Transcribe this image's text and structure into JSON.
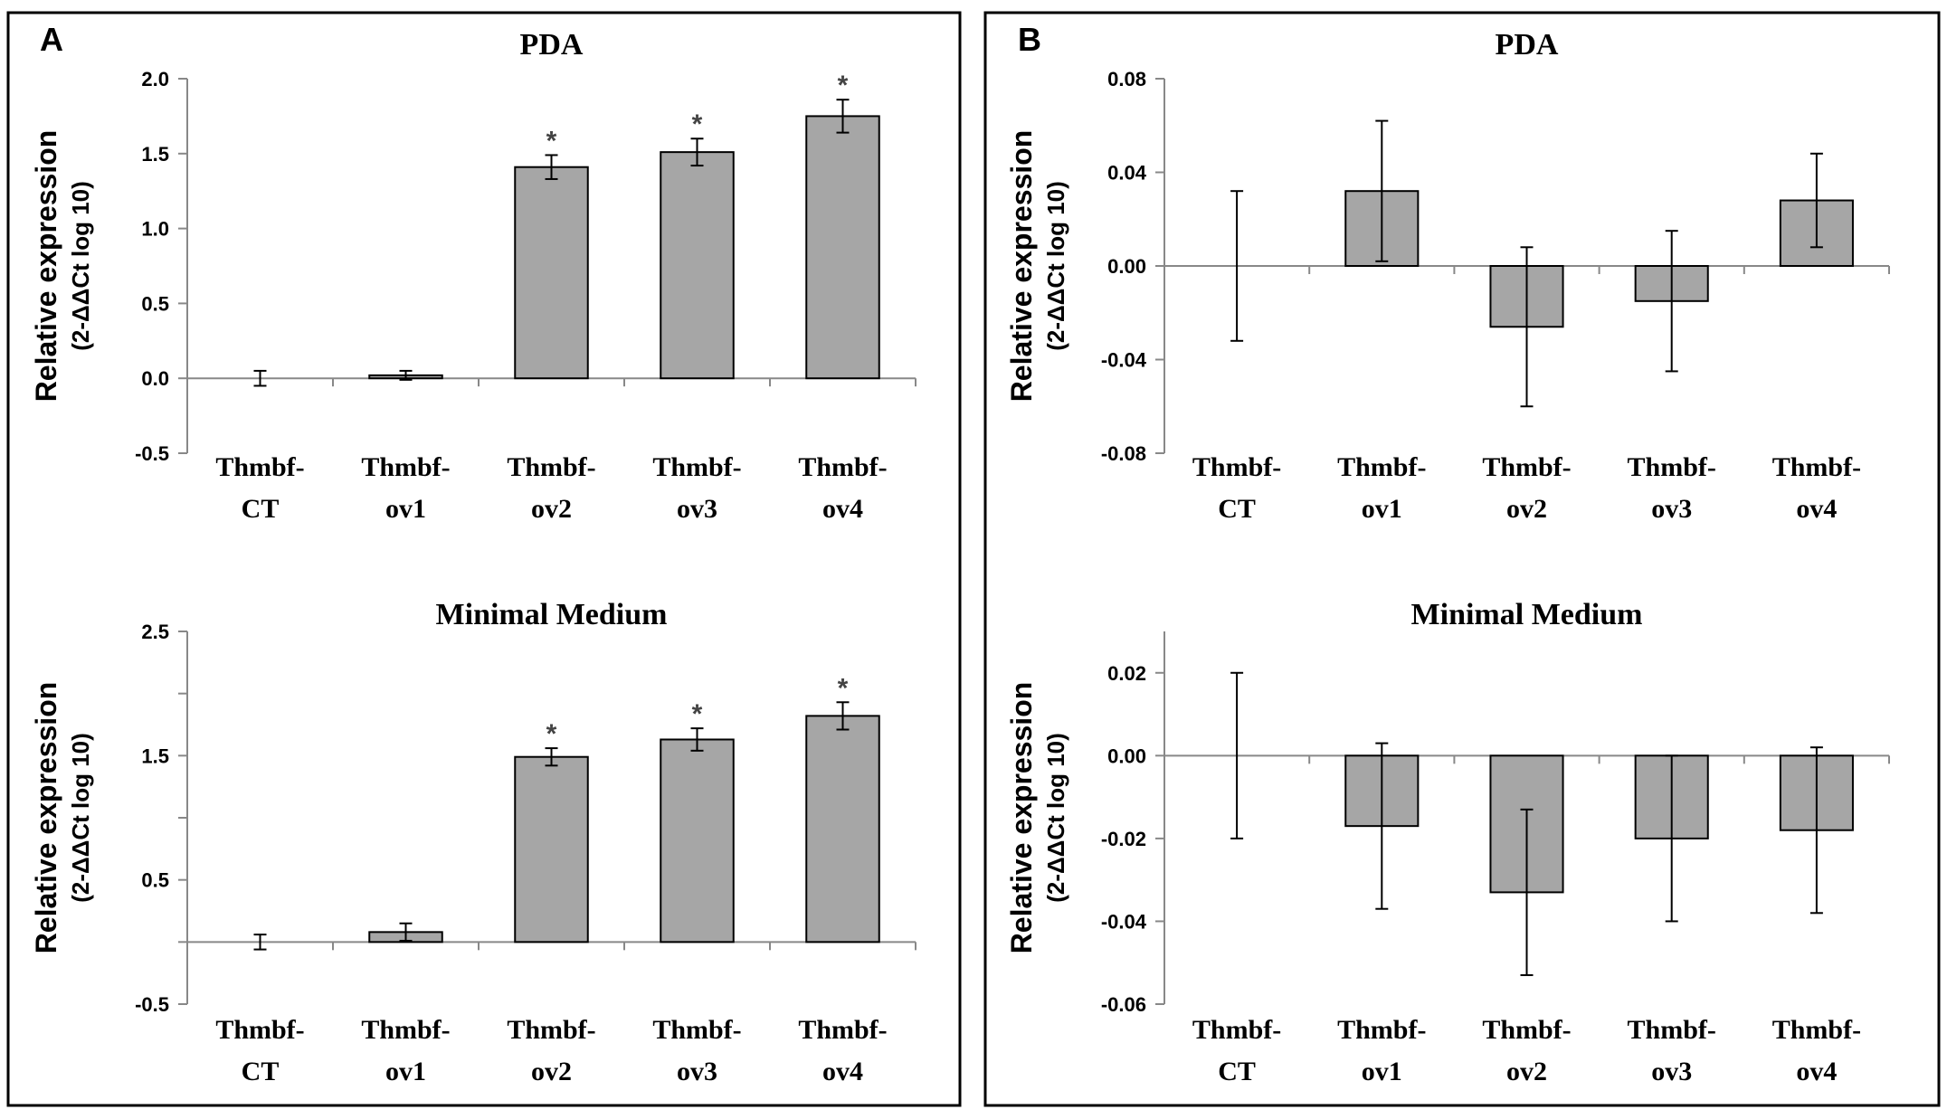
{
  "figure": {
    "panels": [
      {
        "letter": "A"
      },
      {
        "letter": "B"
      }
    ]
  },
  "chart_data": [
    {
      "panel": "A",
      "type": "bar",
      "title": "PDA",
      "ylabel_main": "Relative expression",
      "ylabel_sub": "(2-ΔΔCt log 10)",
      "categories": [
        [
          "Thmbf-",
          "CT"
        ],
        [
          "Thmbf-",
          "ov1"
        ],
        [
          "Thmbf-",
          "ov2"
        ],
        [
          "Thmbf-",
          "ov3"
        ],
        [
          "Thmbf-",
          "ov4"
        ]
      ],
      "values": [
        0.0,
        0.02,
        1.41,
        1.51,
        1.75
      ],
      "errors": [
        0.05,
        0.03,
        0.08,
        0.09,
        0.11
      ],
      "significant": [
        false,
        false,
        true,
        true,
        true
      ],
      "marker": "*",
      "ylim": [
        -0.5,
        2.0
      ],
      "yticks": [
        -0.5,
        0.0,
        0.5,
        1.0,
        1.5,
        2.0
      ],
      "ytick_labels": [
        "-0.5",
        "0.0",
        "0.5",
        "1.0",
        "1.5",
        "2.0"
      ]
    },
    {
      "panel": "A",
      "type": "bar",
      "title": "Minimal Medium",
      "ylabel_main": "Relative expression",
      "ylabel_sub": "(2-ΔΔCt log 10)",
      "categories": [
        [
          "Thmbf-",
          "CT"
        ],
        [
          "Thmbf-",
          "ov1"
        ],
        [
          "Thmbf-",
          "ov2"
        ],
        [
          "Thmbf-",
          "ov3"
        ],
        [
          "Thmbf-",
          "ov4"
        ]
      ],
      "values": [
        0.0,
        0.08,
        1.49,
        1.63,
        1.82
      ],
      "errors": [
        0.06,
        0.07,
        0.07,
        0.09,
        0.11
      ],
      "significant": [
        false,
        false,
        true,
        true,
        true
      ],
      "marker": "*",
      "ylim": [
        -0.5,
        2.5
      ],
      "yticks": [
        -0.5,
        0.0,
        0.5,
        1.0,
        1.5,
        2.0,
        2.5
      ],
      "ytick_labels": [
        "-0.5",
        "",
        "0.5",
        "",
        "1.5",
        "",
        "2.5"
      ]
    },
    {
      "panel": "B",
      "type": "bar",
      "title": "PDA",
      "ylabel_main": "Relative expression",
      "ylabel_sub": "(2-ΔΔCt log 10)",
      "categories": [
        [
          "Thmbf-",
          "CT"
        ],
        [
          "Thmbf-",
          "ov1"
        ],
        [
          "Thmbf-",
          "ov2"
        ],
        [
          "Thmbf-",
          "ov3"
        ],
        [
          "Thmbf-",
          "ov4"
        ]
      ],
      "values": [
        0.0,
        0.032,
        -0.026,
        -0.015,
        0.028
      ],
      "errors": [
        0.032,
        0.03,
        0.034,
        0.03,
        0.02
      ],
      "significant": [
        false,
        false,
        false,
        false,
        false
      ],
      "marker": "*",
      "ylim": [
        -0.08,
        0.08
      ],
      "yticks": [
        -0.08,
        -0.04,
        0.0,
        0.04,
        0.08
      ],
      "ytick_labels": [
        "-0.08",
        "-0.04",
        "0.00",
        "0.04",
        "0.08"
      ]
    },
    {
      "panel": "B",
      "type": "bar",
      "title": "Minimal Medium",
      "ylabel_main": "Relative expression",
      "ylabel_sub": "(2-ΔΔCt log 10)",
      "categories": [
        [
          "Thmbf-",
          "CT"
        ],
        [
          "Thmbf-",
          "ov1"
        ],
        [
          "Thmbf-",
          "ov2"
        ],
        [
          "Thmbf-",
          "ov3"
        ],
        [
          "Thmbf-",
          "ov4"
        ]
      ],
      "values": [
        0.0,
        -0.017,
        -0.033,
        -0.02,
        -0.018
      ],
      "errors": [
        0.02,
        0.02,
        0.02,
        0.02,
        0.02
      ],
      "significant": [
        false,
        false,
        false,
        false,
        false
      ],
      "marker": "*",
      "ylim": [
        -0.06,
        0.03
      ],
      "yticks": [
        -0.06,
        -0.04,
        -0.02,
        0.0,
        0.02
      ],
      "ytick_labels": [
        "-0.06",
        "-0.04",
        "-0.02",
        "0.00",
        "0.02"
      ]
    }
  ],
  "colors": {
    "bar_fill": "#a6a6a6",
    "bar_stroke": "#000000",
    "axis": "#888888",
    "frame": "#000000"
  }
}
